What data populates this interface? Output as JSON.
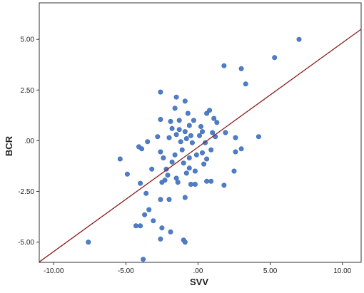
{
  "colors": {
    "point_fill": "#4f7ec9",
    "point_stroke": "#3a66ad",
    "fit_line": "#8b1a1a",
    "axis": "#333333",
    "background": "#ffffff"
  },
  "chart_data": {
    "type": "scatter",
    "xlabel": "SVV",
    "ylabel": "BCR",
    "xlim": [
      -11.0,
      11.3
    ],
    "ylim": [
      -6.0,
      6.8
    ],
    "grid": false,
    "x_ticks": [
      {
        "value": -10,
        "label": "-10.00"
      },
      {
        "value": -5,
        "label": "-5.00"
      },
      {
        "value": 0,
        "label": ".00"
      },
      {
        "value": 5,
        "label": "5.00"
      },
      {
        "value": 10,
        "label": "10.00"
      }
    ],
    "y_ticks": [
      {
        "value": 5,
        "label": "5.00"
      },
      {
        "value": 2.5,
        "label": "2.50"
      },
      {
        "value": 0,
        "label": ".00"
      },
      {
        "value": -2.5,
        "label": "-2.50"
      },
      {
        "value": -5,
        "label": "-5.00"
      }
    ],
    "fit_line": {
      "x": [
        -11.0,
        11.3
      ],
      "y": [
        -5.98,
        5.5
      ]
    },
    "points": [
      {
        "x": 7.0,
        "y": 5.0
      },
      {
        "x": 5.3,
        "y": 4.1
      },
      {
        "x": 1.8,
        "y": 3.7
      },
      {
        "x": 3.0,
        "y": 3.55
      },
      {
        "x": 3.3,
        "y": 2.8
      },
      {
        "x": -2.6,
        "y": 2.4
      },
      {
        "x": -1.5,
        "y": 2.15
      },
      {
        "x": -0.9,
        "y": 1.95
      },
      {
        "x": -1.6,
        "y": 1.6
      },
      {
        "x": -0.7,
        "y": 1.35
      },
      {
        "x": 0.8,
        "y": 1.5
      },
      {
        "x": 0.6,
        "y": 1.35
      },
      {
        "x": -2.6,
        "y": 1.05
      },
      {
        "x": -1.9,
        "y": 0.95
      },
      {
        "x": -1.3,
        "y": 1.0
      },
      {
        "x": -0.3,
        "y": 1.0
      },
      {
        "x": 1.1,
        "y": 1.1
      },
      {
        "x": 1.3,
        "y": 0.9
      },
      {
        "x": -0.6,
        "y": 0.75
      },
      {
        "x": 0.2,
        "y": 0.7
      },
      {
        "x": -1.8,
        "y": 0.6
      },
      {
        "x": -1.3,
        "y": 0.55
      },
      {
        "x": -0.9,
        "y": 0.45
      },
      {
        "x": 0.3,
        "y": 0.45
      },
      {
        "x": 1.0,
        "y": 0.4
      },
      {
        "x": 1.9,
        "y": 0.4
      },
      {
        "x": -1.5,
        "y": 0.3
      },
      {
        "x": -0.5,
        "y": 0.25
      },
      {
        "x": 0.1,
        "y": 0.25
      },
      {
        "x": -2.8,
        "y": 0.2
      },
      {
        "x": -2.0,
        "y": 0.15
      },
      {
        "x": -0.8,
        "y": 0.1
      },
      {
        "x": 1.2,
        "y": 0.2
      },
      {
        "x": 2.6,
        "y": 0.15
      },
      {
        "x": 4.2,
        "y": 0.2
      },
      {
        "x": -3.5,
        "y": -0.05
      },
      {
        "x": -1.2,
        "y": -0.05
      },
      {
        "x": -0.4,
        "y": -0.1
      },
      {
        "x": 0.5,
        "y": -0.1
      },
      {
        "x": -4.1,
        "y": -0.3
      },
      {
        "x": -3.9,
        "y": -0.4
      },
      {
        "x": -2.6,
        "y": -0.55
      },
      {
        "x": -1.1,
        "y": -0.45
      },
      {
        "x": 0.9,
        "y": -0.45
      },
      {
        "x": 3.0,
        "y": -0.4
      },
      {
        "x": -1.6,
        "y": -0.7
      },
      {
        "x": -0.1,
        "y": -0.7
      },
      {
        "x": 0.3,
        "y": -0.6
      },
      {
        "x": 2.6,
        "y": -0.55
      },
      {
        "x": -5.4,
        "y": -0.9
      },
      {
        "x": -2.4,
        "y": -0.85
      },
      {
        "x": -0.6,
        "y": -0.85
      },
      {
        "x": 0.6,
        "y": -0.9
      },
      {
        "x": -1.8,
        "y": -1.05
      },
      {
        "x": -1.0,
        "y": -1.1
      },
      {
        "x": 0.4,
        "y": -1.15
      },
      {
        "x": -3.2,
        "y": -1.4
      },
      {
        "x": -2.2,
        "y": -1.4
      },
      {
        "x": -0.6,
        "y": -1.35
      },
      {
        "x": -0.2,
        "y": -1.5
      },
      {
        "x": 2.5,
        "y": -1.5
      },
      {
        "x": -4.9,
        "y": -1.65
      },
      {
        "x": -2.1,
        "y": -1.7
      },
      {
        "x": -0.8,
        "y": -1.6
      },
      {
        "x": -2.3,
        "y": -1.95
      },
      {
        "x": -2.5,
        "y": -2.05
      },
      {
        "x": -1.5,
        "y": -1.85
      },
      {
        "x": -1.4,
        "y": -2.05
      },
      {
        "x": -0.5,
        "y": -2.15
      },
      {
        "x": -0.2,
        "y": -2.15
      },
      {
        "x": 0.6,
        "y": -2.0
      },
      {
        "x": 0.9,
        "y": -2.0
      },
      {
        "x": 1.8,
        "y": -2.2
      },
      {
        "x": -4.0,
        "y": -2.1
      },
      {
        "x": -3.6,
        "y": -2.6
      },
      {
        "x": -2.6,
        "y": -2.9
      },
      {
        "x": -2.0,
        "y": -2.9
      },
      {
        "x": -0.9,
        "y": -2.8
      },
      {
        "x": -3.4,
        "y": -3.4
      },
      {
        "x": -3.7,
        "y": -3.65
      },
      {
        "x": -3.1,
        "y": -3.95
      },
      {
        "x": -4.3,
        "y": -4.2
      },
      {
        "x": -4.0,
        "y": -4.2
      },
      {
        "x": -2.5,
        "y": -4.3
      },
      {
        "x": -1.9,
        "y": -4.5
      },
      {
        "x": -2.6,
        "y": -4.85
      },
      {
        "x": -1.0,
        "y": -4.9
      },
      {
        "x": -0.9,
        "y": -5.0
      },
      {
        "x": -7.6,
        "y": -5.0
      },
      {
        "x": -3.8,
        "y": -5.85
      }
    ]
  }
}
